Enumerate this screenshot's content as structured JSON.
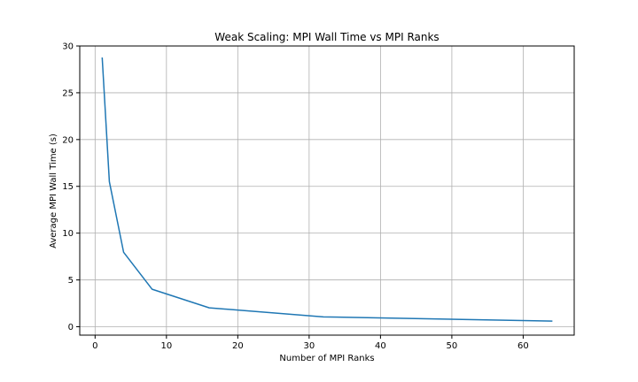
{
  "chart_data": {
    "type": "line",
    "title": "Weak Scaling: MPI Wall Time vs MPI Ranks",
    "xlabel": "Number of MPI Ranks",
    "ylabel": "Average MPI Wall Time (s)",
    "xlim": [
      -2.15,
      67.15
    ],
    "ylim": [
      -0.9,
      30
    ],
    "xticks": [
      0,
      10,
      20,
      30,
      40,
      50,
      60
    ],
    "yticks": [
      0,
      5,
      10,
      15,
      20,
      25,
      30
    ],
    "grid": true,
    "series": [
      {
        "color": "#1f77b4",
        "x": [
          1,
          2,
          4,
          8,
          16,
          32,
          64
        ],
        "y": [
          28.7,
          15.5,
          7.95,
          4.0,
          2.02,
          1.05,
          0.6
        ]
      }
    ]
  }
}
